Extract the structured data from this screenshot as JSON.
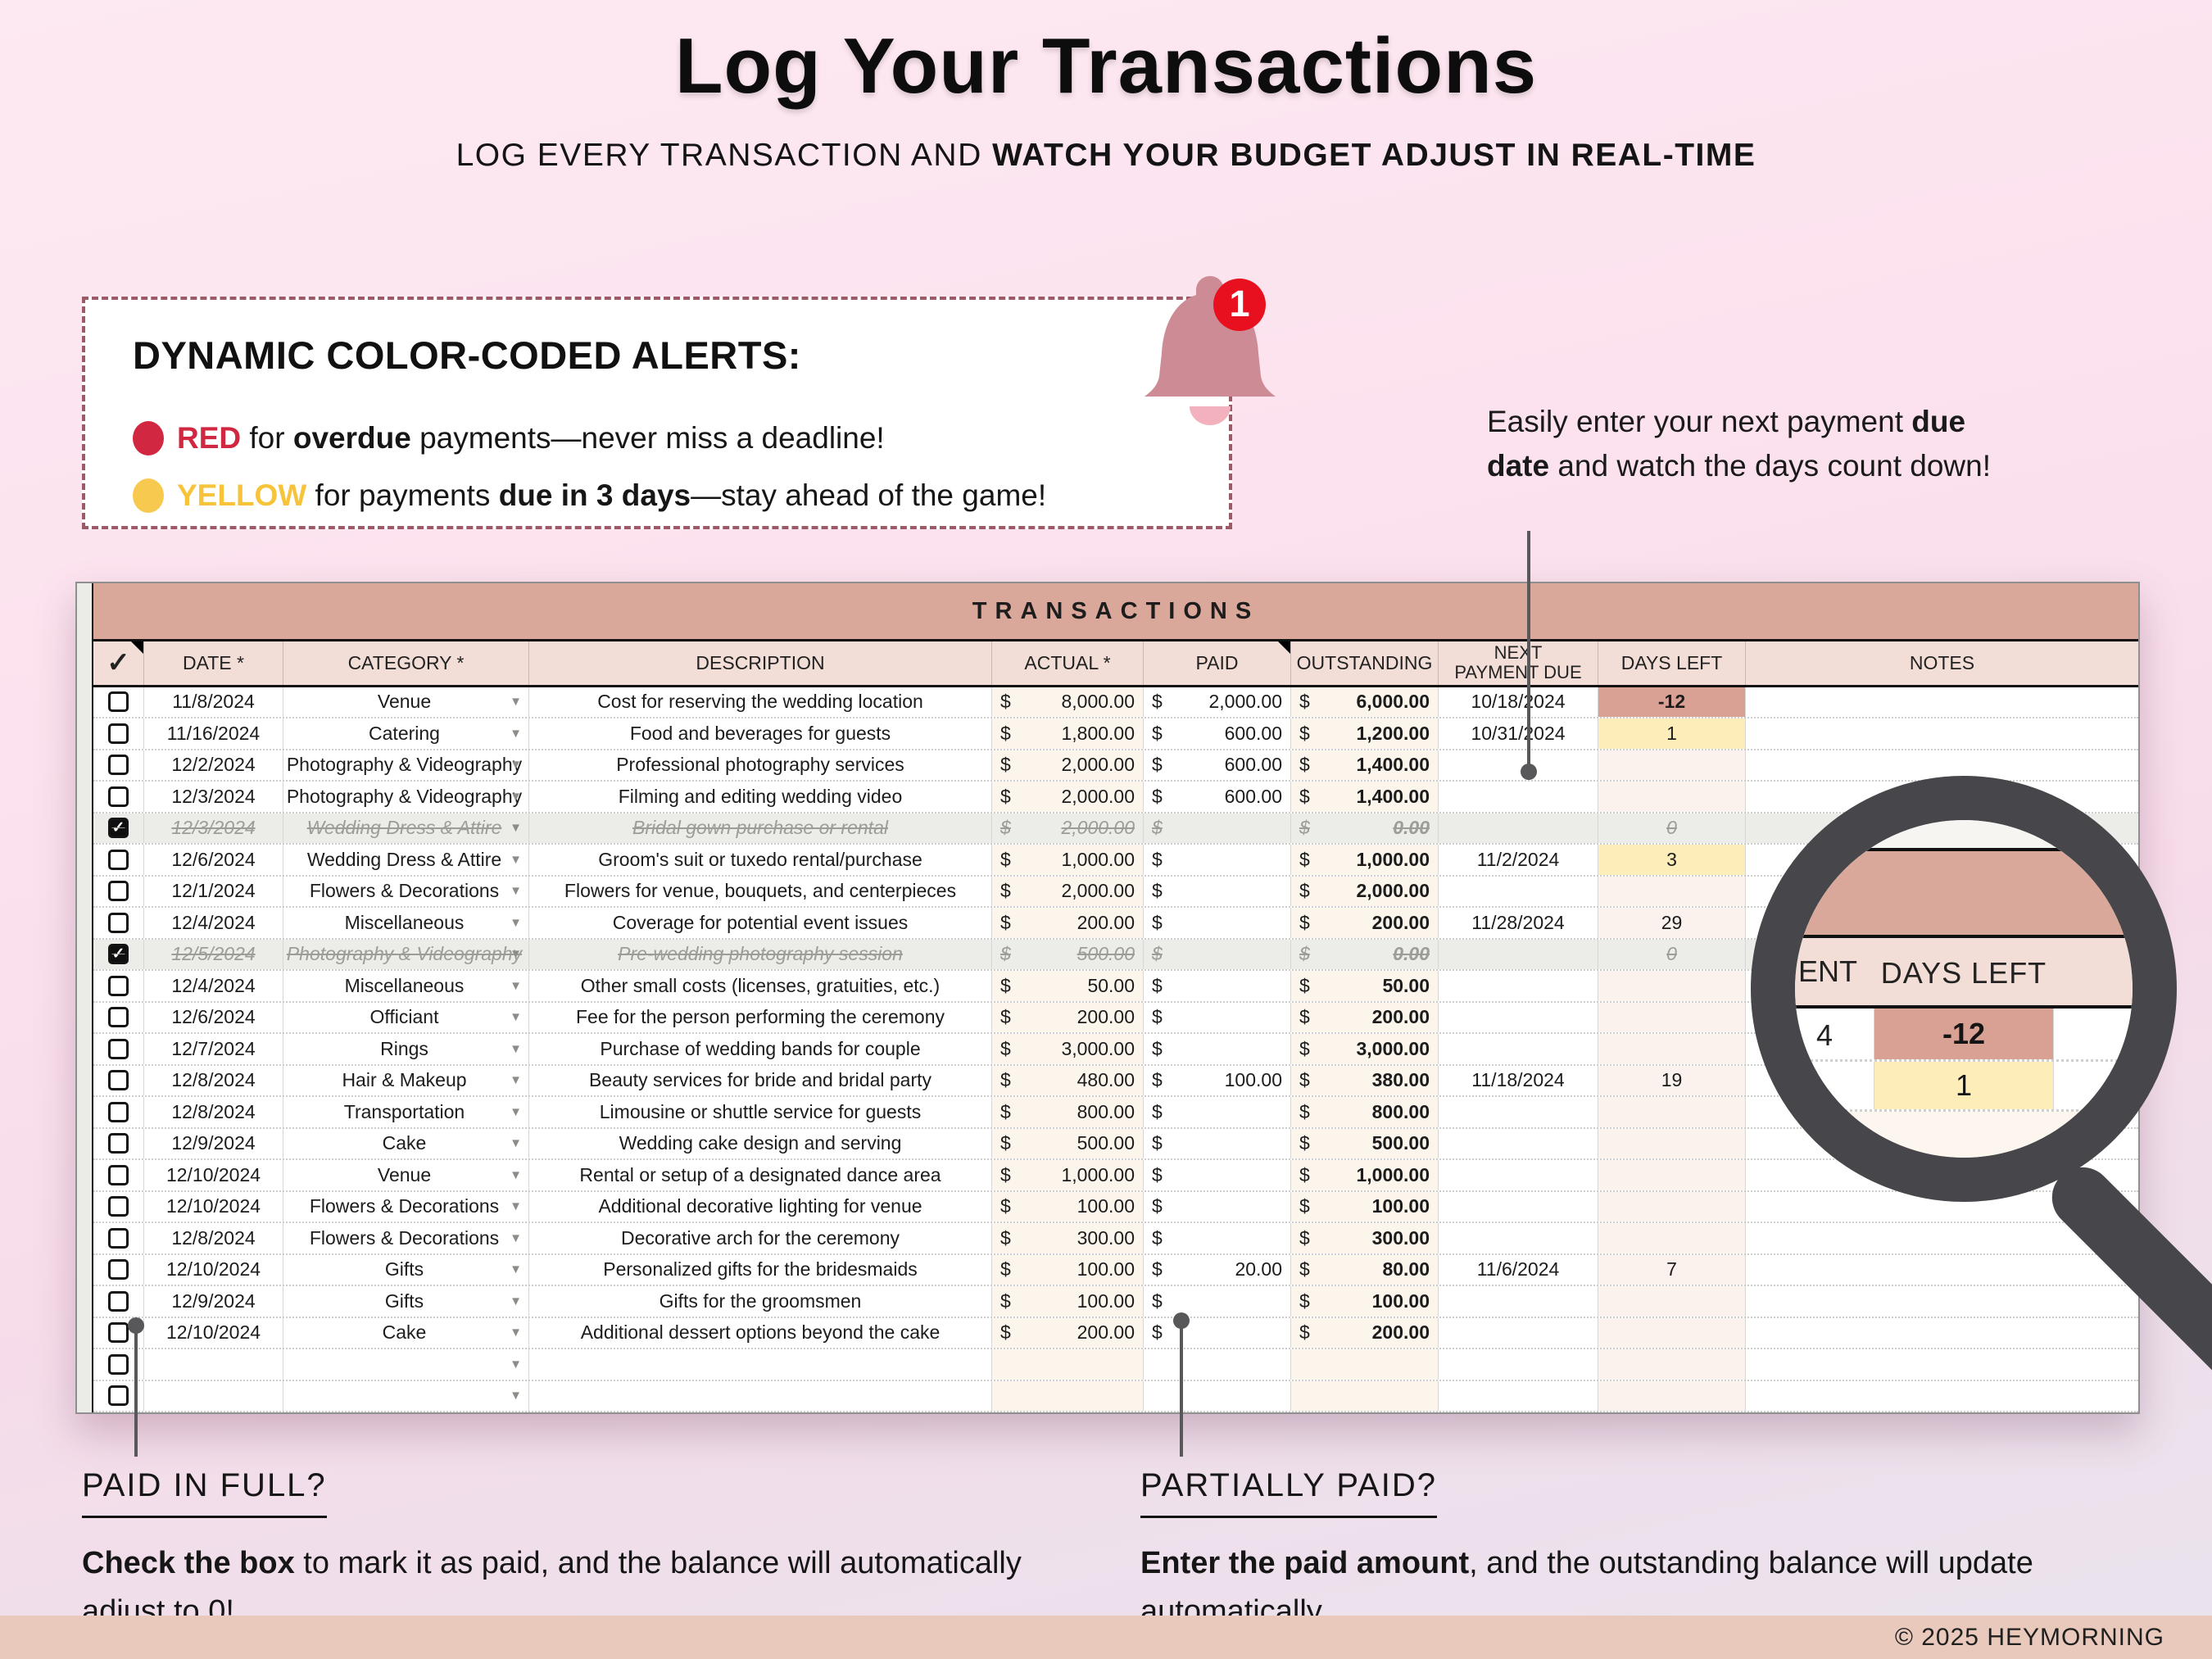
{
  "page": {
    "title": "Log Your Transactions",
    "subtitle": {
      "normal": "LOG EVERY TRANSACTION AND ",
      "bold": "WATCH YOUR BUDGET ADJUST IN REAL-TIME"
    },
    "footer": "© 2025 HEYMORNING"
  },
  "colors": {
    "accent_salmon": "#d9a89b",
    "header_pink": "#f2ded6",
    "alert_red": "#d22740",
    "alert_yellow": "#f6c33b",
    "overdue_cell": "#d8a194",
    "due_soon_cell": "#fcedb9",
    "badge_red": "#e8101e",
    "footer_strip": "#e9c9bb"
  },
  "alerts": {
    "heading": "DYNAMIC COLOR-CODED ALERTS:",
    "badge": "1",
    "bullets": [
      {
        "word": "RED",
        "pre": " for ",
        "bold": "overdue",
        "post": " payments—never miss a deadline!"
      },
      {
        "word": "YELLOW",
        "pre": " for payments ",
        "bold": "due in 3 days",
        "post": "—stay ahead of the game!"
      }
    ]
  },
  "callouts": {
    "due_date": {
      "pre": "Easily enter your next payment ",
      "bold": "due date",
      "post": " and watch the days count down!"
    },
    "paid_in_full": {
      "title": "PAID IN FULL?",
      "bold": "Check the box",
      "rest": " to mark it as paid, and the balance will automatically adjust to 0!"
    },
    "partially_paid": {
      "title": "PARTIALLY PAID?",
      "bold": "Enter the paid amount",
      "rest": ", and the outstanding balance will update automatically."
    }
  },
  "sheet": {
    "title": "TRANSACTIONS",
    "headers": {
      "check": "✓",
      "date": "DATE *",
      "category": "CATEGORY *",
      "description": "DESCRIPTION",
      "actual": "ACTUAL *",
      "paid": "PAID",
      "outstanding": "OUTSTANDING",
      "next_due": "NEXT PAYMENT DUE",
      "days_left": "DAYS LEFT",
      "notes": "NOTES"
    },
    "rows": [
      {
        "checked": false,
        "date": "11/8/2024",
        "category": "Venue",
        "description": "Cost for reserving the wedding location",
        "actual": "8,000.00",
        "paid": "2,000.00",
        "outstanding": "6,000.00",
        "next_due": "10/18/2024",
        "days_left": "-12",
        "days_status": "overdue"
      },
      {
        "checked": false,
        "date": "11/16/2024",
        "category": "Catering",
        "description": "Food and beverages for guests",
        "actual": "1,800.00",
        "paid": "600.00",
        "outstanding": "1,200.00",
        "next_due": "10/31/2024",
        "days_left": "1",
        "days_status": "due-soon"
      },
      {
        "checked": false,
        "date": "12/2/2024",
        "category": "Photography & Videography",
        "description": "Professional photography services",
        "actual": "2,000.00",
        "paid": "600.00",
        "outstanding": "1,400.00",
        "next_due": "",
        "days_left": "",
        "days_status": ""
      },
      {
        "checked": false,
        "date": "12/3/2024",
        "category": "Photography & Videography",
        "description": "Filming and editing wedding video",
        "actual": "2,000.00",
        "paid": "600.00",
        "outstanding": "1,400.00",
        "next_due": "",
        "days_left": "",
        "days_status": ""
      },
      {
        "checked": true,
        "date": "12/3/2024",
        "category": "Wedding Dress & Attire",
        "description": "Bridal gown purchase or rental",
        "actual": "2,000.00",
        "paid": "",
        "outstanding": "0.00",
        "next_due": "",
        "days_left": "0",
        "days_status": ""
      },
      {
        "checked": false,
        "date": "12/6/2024",
        "category": "Wedding Dress & Attire",
        "description": "Groom's suit or tuxedo rental/purchase",
        "actual": "1,000.00",
        "paid": "",
        "outstanding": "1,000.00",
        "next_due": "11/2/2024",
        "days_left": "3",
        "days_status": "due-soon"
      },
      {
        "checked": false,
        "date": "12/1/2024",
        "category": "Flowers & Decorations",
        "description": "Flowers for venue, bouquets, and centerpieces",
        "actual": "2,000.00",
        "paid": "",
        "outstanding": "2,000.00",
        "next_due": "",
        "days_left": "",
        "days_status": ""
      },
      {
        "checked": false,
        "date": "12/4/2024",
        "category": "Miscellaneous",
        "description": "Coverage for potential event issues",
        "actual": "200.00",
        "paid": "",
        "outstanding": "200.00",
        "next_due": "11/28/2024",
        "days_left": "29",
        "days_status": ""
      },
      {
        "checked": true,
        "date": "12/5/2024",
        "category": "Photography & Videography",
        "description": "Pre-wedding photography session",
        "actual": "500.00",
        "paid": "",
        "outstanding": "0.00",
        "next_due": "",
        "days_left": "0",
        "days_status": ""
      },
      {
        "checked": false,
        "date": "12/4/2024",
        "category": "Miscellaneous",
        "description": "Other small costs (licenses, gratuities, etc.)",
        "actual": "50.00",
        "paid": "",
        "outstanding": "50.00",
        "next_due": "",
        "days_left": "",
        "days_status": ""
      },
      {
        "checked": false,
        "date": "12/6/2024",
        "category": "Officiant",
        "description": "Fee for the person performing the ceremony",
        "actual": "200.00",
        "paid": "",
        "outstanding": "200.00",
        "next_due": "",
        "days_left": "",
        "days_status": ""
      },
      {
        "checked": false,
        "date": "12/7/2024",
        "category": "Rings",
        "description": "Purchase of wedding bands for couple",
        "actual": "3,000.00",
        "paid": "",
        "outstanding": "3,000.00",
        "next_due": "",
        "days_left": "",
        "days_status": ""
      },
      {
        "checked": false,
        "date": "12/8/2024",
        "category": "Hair & Makeup",
        "description": "Beauty services for bride and bridal party",
        "actual": "480.00",
        "paid": "100.00",
        "outstanding": "380.00",
        "next_due": "11/18/2024",
        "days_left": "19",
        "days_status": ""
      },
      {
        "checked": false,
        "date": "12/8/2024",
        "category": "Transportation",
        "description": "Limousine or shuttle service for guests",
        "actual": "800.00",
        "paid": "",
        "outstanding": "800.00",
        "next_due": "",
        "days_left": "",
        "days_status": ""
      },
      {
        "checked": false,
        "date": "12/9/2024",
        "category": "Cake",
        "description": "Wedding cake design and serving",
        "actual": "500.00",
        "paid": "",
        "outstanding": "500.00",
        "next_due": "",
        "days_left": "",
        "days_status": ""
      },
      {
        "checked": false,
        "date": "12/10/2024",
        "category": "Venue",
        "description": "Rental or setup of a designated dance area",
        "actual": "1,000.00",
        "paid": "",
        "outstanding": "1,000.00",
        "next_due": "",
        "days_left": "",
        "days_status": ""
      },
      {
        "checked": false,
        "date": "12/10/2024",
        "category": "Flowers & Decorations",
        "description": "Additional decorative lighting for venue",
        "actual": "100.00",
        "paid": "",
        "outstanding": "100.00",
        "next_due": "",
        "days_left": "",
        "days_status": ""
      },
      {
        "checked": false,
        "date": "12/8/2024",
        "category": "Flowers & Decorations",
        "description": "Decorative arch for the ceremony",
        "actual": "300.00",
        "paid": "",
        "outstanding": "300.00",
        "next_due": "",
        "days_left": "",
        "days_status": ""
      },
      {
        "checked": false,
        "date": "12/10/2024",
        "category": "Gifts",
        "description": "Personalized gifts for the bridesmaids",
        "actual": "100.00",
        "paid": "20.00",
        "outstanding": "80.00",
        "next_due": "11/6/2024",
        "days_left": "7",
        "days_status": ""
      },
      {
        "checked": false,
        "date": "12/9/2024",
        "category": "Gifts",
        "description": "Gifts for the groomsmen",
        "actual": "100.00",
        "paid": "",
        "outstanding": "100.00",
        "next_due": "",
        "days_left": "",
        "days_status": ""
      },
      {
        "checked": false,
        "date": "12/10/2024",
        "category": "Cake",
        "description": "Additional dessert options beyond the cake",
        "actual": "200.00",
        "paid": "",
        "outstanding": "200.00",
        "next_due": "",
        "days_left": "",
        "days_status": ""
      },
      {
        "empty": true,
        "checked": false
      },
      {
        "empty": true,
        "checked": false
      }
    ]
  },
  "magnifier": {
    "header_clip": "ENT",
    "header": "DAYS LEFT",
    "date_clip": "4",
    "overdue_value": "-12",
    "due_soon_value": "1"
  }
}
